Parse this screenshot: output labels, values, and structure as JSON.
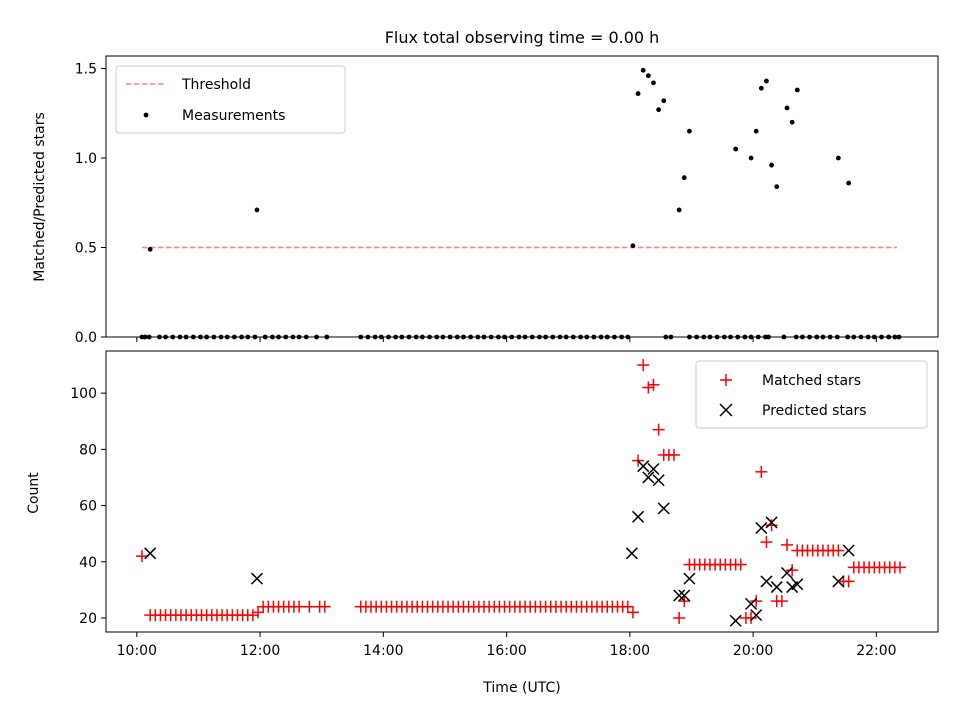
{
  "chart_data": [
    {
      "type": "scatter",
      "title": "Flux total observing time = 0.00 h",
      "ylabel": "Matched/Predicted stars",
      "xlabel": "",
      "xlim": [
        "09:30",
        "23:00"
      ],
      "ylim": [
        0,
        1.57
      ],
      "yticks": [
        "0.0",
        "0.5",
        "1.0",
        "1.5"
      ],
      "xticks": [
        "10:00",
        "12:00",
        "14:00",
        "16:00",
        "18:00",
        "20:00",
        "22:00"
      ],
      "legend_position": "top-left",
      "legend": [
        "Threshold",
        "Measurements"
      ],
      "colors": {
        "threshold": "#ff7f7f",
        "measurements": "#000000"
      },
      "threshold": {
        "name": "Threshold",
        "value": 0.5,
        "x_range": [
          "10:05",
          "22:20"
        ]
      },
      "series": [
        {
          "name": "Measurements",
          "x": [
            "10:05",
            "10:08",
            "10:12",
            "10:22",
            "10:28",
            "10:35",
            "10:42",
            "10:48",
            "10:55",
            "11:02",
            "11:08",
            "11:15",
            "11:22",
            "11:28",
            "11:35",
            "11:42",
            "11:48",
            "11:55",
            "12:05",
            "12:12",
            "12:18",
            "12:25",
            "12:32",
            "12:38",
            "12:45",
            "12:55",
            "13:05",
            "13:38",
            "13:45",
            "13:52",
            "13:58",
            "14:05",
            "14:12",
            "14:18",
            "14:25",
            "14:32",
            "14:38",
            "14:45",
            "14:52",
            "14:58",
            "15:05",
            "15:12",
            "15:18",
            "15:25",
            "15:32",
            "15:38",
            "15:45",
            "15:52",
            "15:58",
            "16:05",
            "16:12",
            "16:18",
            "16:25",
            "16:32",
            "16:38",
            "16:45",
            "16:52",
            "16:58",
            "17:05",
            "17:12",
            "17:18",
            "17:25",
            "17:32",
            "17:38",
            "17:45",
            "17:52",
            "17:58",
            "18:35",
            "18:40",
            "18:58",
            "19:05",
            "19:12",
            "19:18",
            "19:25",
            "19:32",
            "19:38",
            "19:45",
            "19:52",
            "19:58",
            "20:05",
            "20:12",
            "20:15",
            "20:30",
            "20:42",
            "20:48",
            "20:55",
            "21:02",
            "21:08",
            "21:15",
            "21:22",
            "21:32",
            "21:38",
            "21:45",
            "21:52",
            "21:58",
            "22:05",
            "22:12",
            "22:18",
            "22:22",
            "10:13",
            "11:57",
            "18:03",
            "18:08",
            "18:13",
            "18:18",
            "18:23",
            "18:28",
            "18:33",
            "18:48",
            "18:53",
            "18:58",
            "19:43",
            "19:58",
            "20:03",
            "20:08",
            "20:13",
            "20:18",
            "20:23",
            "20:33",
            "20:38",
            "20:43",
            "21:23",
            "21:33"
          ],
          "y": [
            0,
            0,
            0,
            0,
            0,
            0,
            0,
            0,
            0,
            0,
            0,
            0,
            0,
            0,
            0,
            0,
            0,
            0,
            0,
            0,
            0,
            0,
            0,
            0,
            0,
            0,
            0,
            0,
            0,
            0,
            0,
            0,
            0,
            0,
            0,
            0,
            0,
            0,
            0,
            0,
            0,
            0,
            0,
            0,
            0,
            0,
            0,
            0,
            0,
            0,
            0,
            0,
            0,
            0,
            0,
            0,
            0,
            0,
            0,
            0,
            0,
            0,
            0,
            0,
            0,
            0,
            0,
            0,
            0,
            0,
            0,
            0,
            0,
            0,
            0,
            0,
            0,
            0,
            0,
            0,
            0,
            0,
            0,
            0,
            0,
            0,
            0,
            0,
            0,
            0,
            0,
            0,
            0,
            0,
            0,
            0,
            0,
            0,
            0,
            0.49,
            0.71,
            0.51,
            1.36,
            1.49,
            1.46,
            1.42,
            1.27,
            1.32,
            0.71,
            0.89,
            1.15,
            1.05,
            1.0,
            1.15,
            1.39,
            1.43,
            0.96,
            0.84,
            1.28,
            1.2,
            1.38,
            1.0,
            0.86
          ]
        }
      ]
    },
    {
      "type": "scatter",
      "title": "",
      "xlabel": "Time (UTC)",
      "ylabel": "Count",
      "xlim": [
        "09:30",
        "23:00"
      ],
      "ylim": [
        15,
        115
      ],
      "yticks": [
        "20",
        "40",
        "60",
        "80",
        "100"
      ],
      "xticks": [
        "10:00",
        "12:00",
        "14:00",
        "16:00",
        "18:00",
        "20:00",
        "22:00"
      ],
      "legend_position": "top-right",
      "legend": [
        "Matched stars",
        "Predicted stars"
      ],
      "colors": {
        "matched": "#ff0000",
        "predicted": "#000000"
      },
      "series": [
        {
          "name": "Matched stars",
          "marker": "plus",
          "x": [
            "10:05",
            "10:13",
            "10:18",
            "10:23",
            "10:28",
            "10:33",
            "10:38",
            "10:43",
            "10:48",
            "10:53",
            "10:58",
            "11:03",
            "11:08",
            "11:13",
            "11:18",
            "11:23",
            "11:28",
            "11:33",
            "11:38",
            "11:43",
            "11:48",
            "11:53",
            "11:58",
            "12:03",
            "12:08",
            "12:13",
            "12:18",
            "12:23",
            "12:28",
            "12:33",
            "12:38",
            "12:48",
            "12:58",
            "13:03",
            "13:38",
            "13:43",
            "13:48",
            "13:53",
            "13:58",
            "14:03",
            "14:08",
            "14:13",
            "14:18",
            "14:23",
            "14:28",
            "14:33",
            "14:38",
            "14:43",
            "14:48",
            "14:53",
            "14:58",
            "15:03",
            "15:08",
            "15:13",
            "15:18",
            "15:23",
            "15:28",
            "15:33",
            "15:38",
            "15:43",
            "15:48",
            "15:53",
            "15:58",
            "16:03",
            "16:08",
            "16:13",
            "16:18",
            "16:23",
            "16:28",
            "16:33",
            "16:38",
            "16:43",
            "16:48",
            "16:53",
            "16:58",
            "17:03",
            "17:08",
            "17:13",
            "17:18",
            "17:23",
            "17:28",
            "17:33",
            "17:38",
            "17:43",
            "17:48",
            "17:53",
            "17:58",
            "18:03",
            "18:08",
            "18:13",
            "18:18",
            "18:23",
            "18:28",
            "18:33",
            "18:38",
            "18:43",
            "18:48",
            "18:53",
            "18:58",
            "19:03",
            "19:08",
            "19:13",
            "19:18",
            "19:23",
            "19:28",
            "19:33",
            "19:38",
            "19:43",
            "19:48",
            "19:53",
            "19:58",
            "20:03",
            "20:08",
            "20:13",
            "20:18",
            "20:23",
            "20:28",
            "20:33",
            "20:38",
            "20:43",
            "20:48",
            "20:53",
            "20:58",
            "21:03",
            "21:08",
            "21:13",
            "21:18",
            "21:23",
            "21:28",
            "21:33",
            "21:38",
            "21:43",
            "21:48",
            "21:53",
            "21:58",
            "22:03",
            "22:08",
            "22:13",
            "22:18",
            "22:23"
          ],
          "y": [
            42,
            21,
            21,
            21,
            21,
            21,
            21,
            21,
            21,
            21,
            21,
            21,
            21,
            21,
            21,
            21,
            21,
            21,
            21,
            21,
            21,
            21,
            22,
            24,
            24,
            24,
            24,
            24,
            24,
            24,
            24,
            24,
            24,
            24,
            24,
            24,
            24,
            24,
            24,
            24,
            24,
            24,
            24,
            24,
            24,
            24,
            24,
            24,
            24,
            24,
            24,
            24,
            24,
            24,
            24,
            24,
            24,
            24,
            24,
            24,
            24,
            24,
            24,
            24,
            24,
            24,
            24,
            24,
            24,
            24,
            24,
            24,
            24,
            24,
            24,
            24,
            24,
            24,
            24,
            24,
            24,
            24,
            24,
            24,
            24,
            24,
            24,
            22,
            76,
            110,
            102,
            103,
            87,
            78,
            78,
            78,
            20,
            26,
            39,
            39,
            39,
            39,
            39,
            39,
            39,
            39,
            39,
            39,
            39,
            20,
            20,
            26,
            72,
            47,
            53,
            26,
            26,
            46,
            37,
            44,
            44,
            44,
            44,
            44,
            44,
            44,
            44,
            44,
            33,
            33,
            38,
            38,
            38,
            38,
            38,
            38,
            38,
            38,
            38,
            38
          ]
        },
        {
          "name": "Predicted stars",
          "marker": "x",
          "x": [
            "10:13",
            "11:57",
            "18:02",
            "18:08",
            "18:13",
            "18:18",
            "18:23",
            "18:28",
            "18:33",
            "18:48",
            "18:53",
            "18:58",
            "19:43",
            "19:58",
            "20:03",
            "20:08",
            "20:13",
            "20:18",
            "20:23",
            "20:33",
            "20:38",
            "20:43",
            "21:23",
            "21:33"
          ],
          "y": [
            43,
            34,
            43,
            56,
            74,
            70,
            73,
            69,
            59,
            28,
            28,
            34,
            19,
            25,
            21,
            52,
            33,
            54,
            31,
            36,
            31,
            32,
            33,
            44
          ]
        }
      ]
    }
  ]
}
